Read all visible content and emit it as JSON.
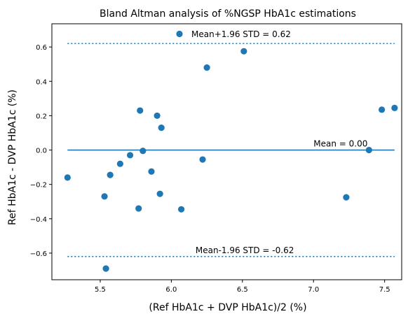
{
  "chart_data": {
    "type": "scatter",
    "title": "Bland Altman analysis of %NGSP HbA1c estimations",
    "xlabel": "(Ref HbA1c + DVP HbA1c)/2 (%)",
    "ylabel": "Ref HbA1c - DVP HbA1c (%)",
    "xlim": [
      5.16,
      7.62
    ],
    "ylim": [
      -0.755,
      0.735
    ],
    "x_ticks": [
      5.5,
      6.0,
      6.5,
      7.0,
      7.5
    ],
    "y_ticks": [
      -0.6,
      -0.4,
      -0.2,
      0.0,
      0.2,
      0.4,
      0.6
    ],
    "x_tick_labels": [
      "5.5",
      "6.0",
      "6.5",
      "7.0",
      "7.5"
    ],
    "y_tick_labels": [
      "−0.6",
      "−0.4",
      "−0.2",
      "0.0",
      "0.2",
      "0.4",
      "0.6"
    ],
    "grid": false,
    "color": "#1f77b4",
    "points": [
      {
        "x": 5.27,
        "y": -0.16
      },
      {
        "x": 5.53,
        "y": -0.27
      },
      {
        "x": 5.54,
        "y": -0.69
      },
      {
        "x": 5.57,
        "y": -0.145
      },
      {
        "x": 5.64,
        "y": -0.08
      },
      {
        "x": 5.71,
        "y": -0.03
      },
      {
        "x": 5.77,
        "y": -0.34
      },
      {
        "x": 5.78,
        "y": 0.23
      },
      {
        "x": 5.8,
        "y": -0.005
      },
      {
        "x": 5.86,
        "y": -0.125
      },
      {
        "x": 5.9,
        "y": 0.2
      },
      {
        "x": 5.92,
        "y": -0.255
      },
      {
        "x": 5.93,
        "y": 0.13
      },
      {
        "x": 6.07,
        "y": -0.345
      },
      {
        "x": 6.22,
        "y": -0.055
      },
      {
        "x": 6.25,
        "y": 0.48
      },
      {
        "x": 6.51,
        "y": 0.575
      },
      {
        "x": 7.23,
        "y": -0.275
      },
      {
        "x": 7.39,
        "y": 0.0
      },
      {
        "x": 7.48,
        "y": 0.235
      },
      {
        "x": 7.57,
        "y": 0.245
      }
    ],
    "mean": 0.0,
    "upper_limit": 0.62,
    "lower_limit": -0.62,
    "line_x_range": [
      5.27,
      7.57
    ],
    "legend_placement": "top-center",
    "legend_label": "Mean+1.96 STD = 0.62",
    "mean_label": "Mean = 0.00",
    "lower_label": "Mean-1.96 STD = -0.62"
  }
}
